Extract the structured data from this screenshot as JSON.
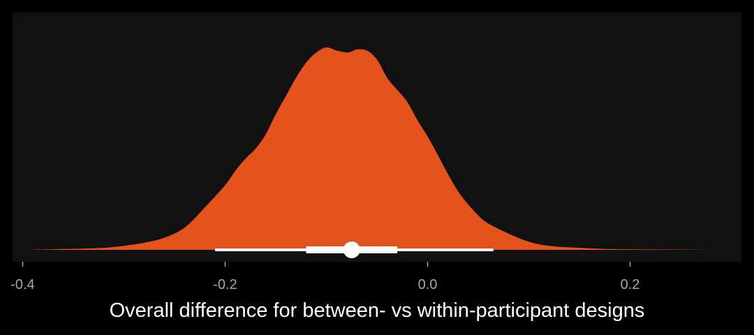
{
  "chart_data": {
    "type": "area",
    "title": "",
    "xlabel": "Overall difference for between- vs within-participant designs",
    "ylabel": "",
    "xlim": [
      -0.41,
      0.31
    ],
    "x_ticks": [
      -0.4,
      -0.2,
      0.0,
      0.2
    ],
    "x_tick_labels": [
      "-0.4",
      "-0.2",
      "0.0",
      "0.2"
    ],
    "grid": false,
    "legend": "none",
    "density": {
      "x": [
        -0.395,
        -0.35,
        -0.32,
        -0.3,
        -0.28,
        -0.26,
        -0.24,
        -0.22,
        -0.2,
        -0.19,
        -0.18,
        -0.17,
        -0.16,
        -0.15,
        -0.14,
        -0.13,
        -0.12,
        -0.11,
        -0.1,
        -0.09,
        -0.08,
        -0.075,
        -0.07,
        -0.06,
        -0.05,
        -0.04,
        -0.03,
        -0.02,
        -0.01,
        0.0,
        0.01,
        0.02,
        0.03,
        0.04,
        0.05,
        0.06,
        0.08,
        0.1,
        0.12,
        0.15,
        0.18,
        0.22,
        0.26,
        0.28
      ],
      "density": [
        0.0,
        0.005,
        0.01,
        0.02,
        0.035,
        0.06,
        0.11,
        0.21,
        0.32,
        0.39,
        0.45,
        0.5,
        0.57,
        0.67,
        0.76,
        0.85,
        0.925,
        0.975,
        1.0,
        0.985,
        0.975,
        0.98,
        0.99,
        0.985,
        0.94,
        0.85,
        0.79,
        0.73,
        0.64,
        0.56,
        0.47,
        0.375,
        0.29,
        0.225,
        0.17,
        0.13,
        0.08,
        0.04,
        0.02,
        0.01,
        0.004,
        0.002,
        0.001,
        0.0
      ]
    },
    "point_interval": {
      "point": -0.075,
      "inner_interval": [
        -0.12,
        -0.03
      ],
      "outer_interval": [
        -0.21,
        0.065
      ]
    },
    "colors": {
      "fill": "#e5531d",
      "interval": "#ffffff",
      "panel": "#111111",
      "background": "#000000"
    }
  }
}
